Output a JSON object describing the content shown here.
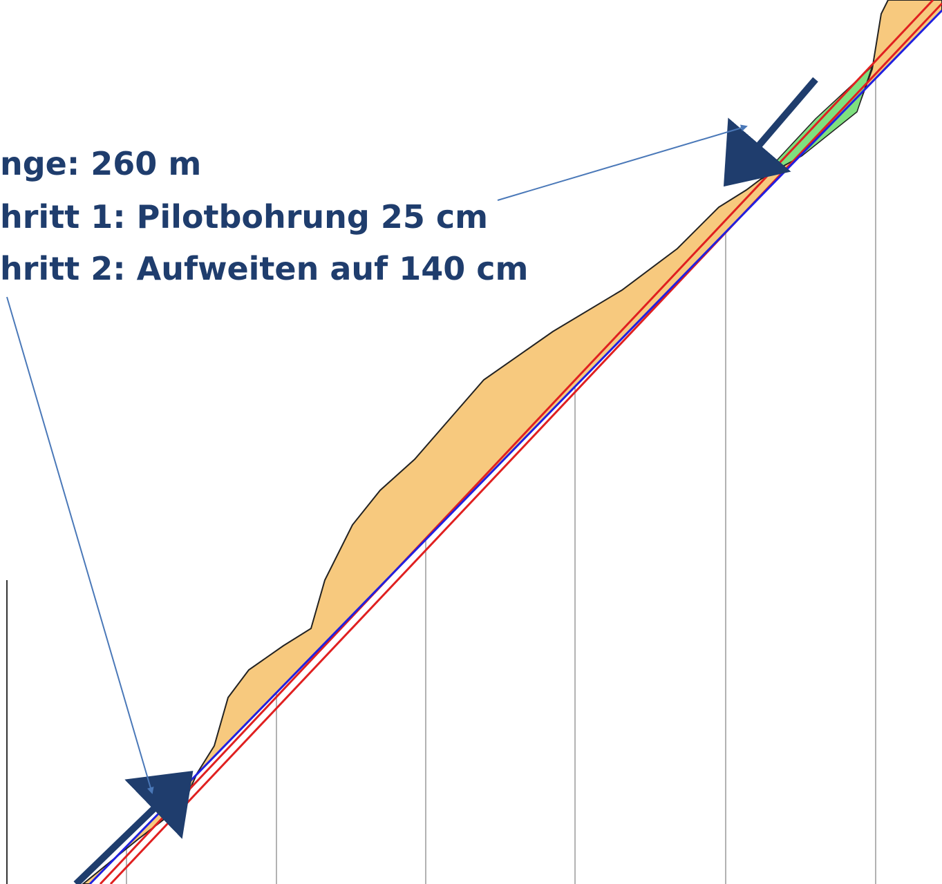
{
  "labels": [
    "nge: 260 m",
    "hritt 1: Pilotbohrung 25 cm",
    "hritt 2: Aufweiten auf 140 cm"
  ]
}
